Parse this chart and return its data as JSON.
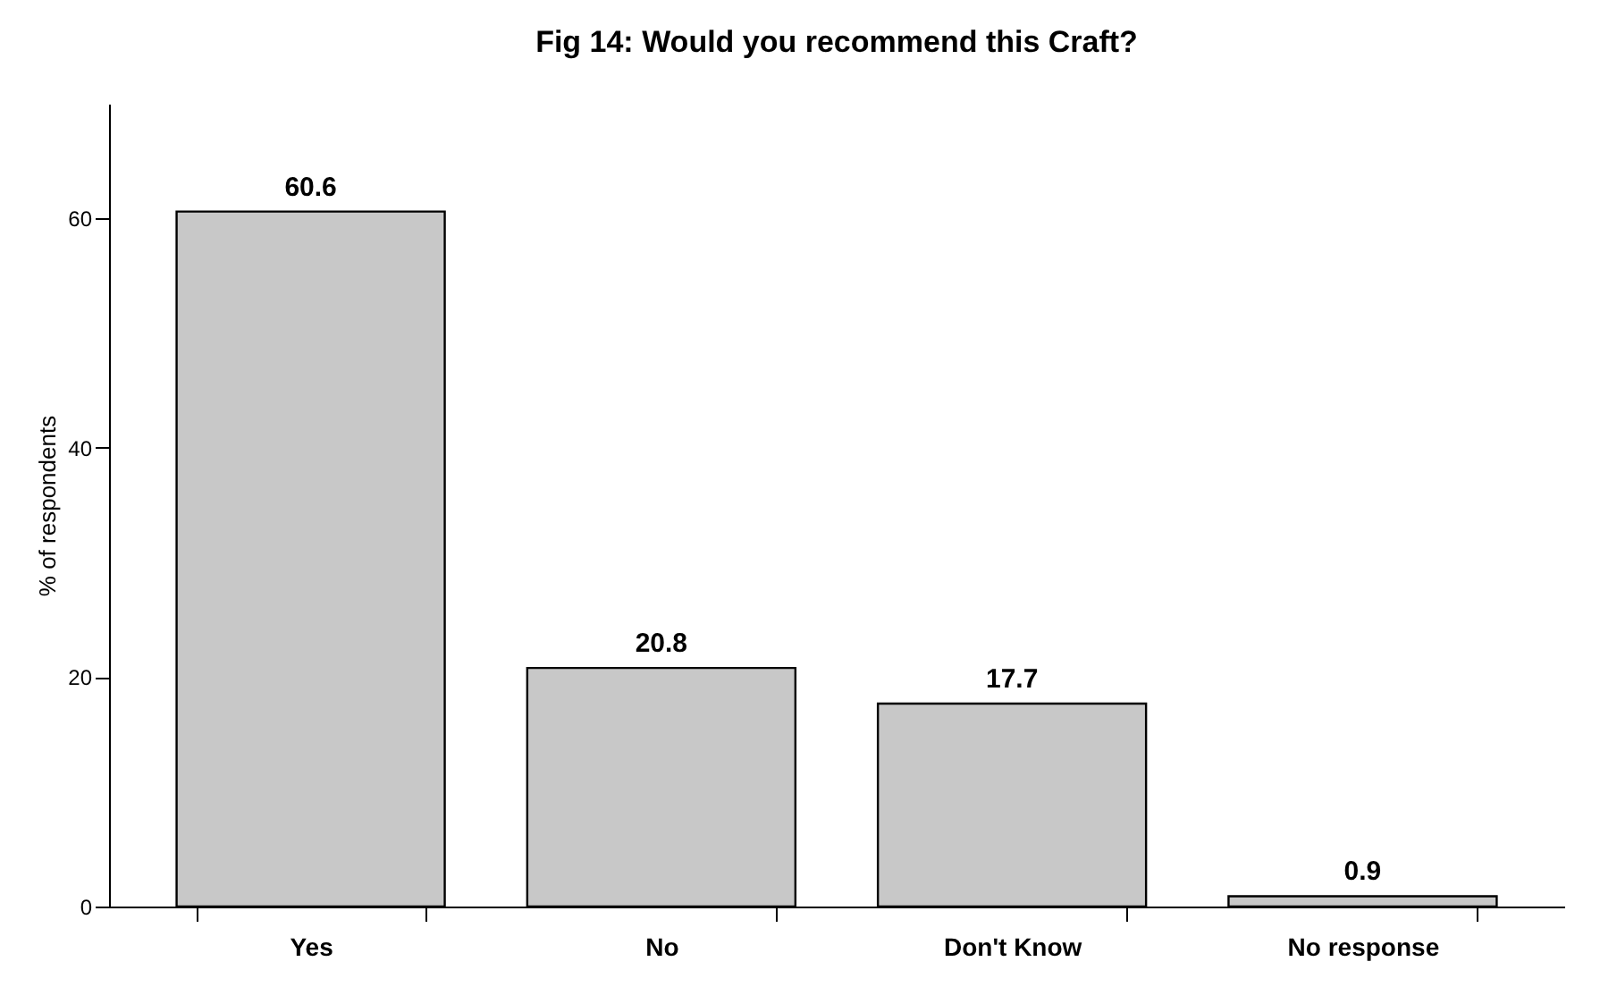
{
  "chart_data": {
    "type": "bar",
    "title": "Fig 14:  Would you recommend this Craft?",
    "ylabel": "% of respondents",
    "categories": [
      "Yes",
      "No",
      "Don't Know",
      "No response"
    ],
    "values": [
      60.6,
      20.8,
      17.7,
      0.9
    ],
    "color": "#c8c8c8",
    "ylim": [
      0,
      70
    ],
    "yticks": [
      0,
      20,
      40,
      60
    ],
    "grid": false,
    "data_labels": true
  }
}
